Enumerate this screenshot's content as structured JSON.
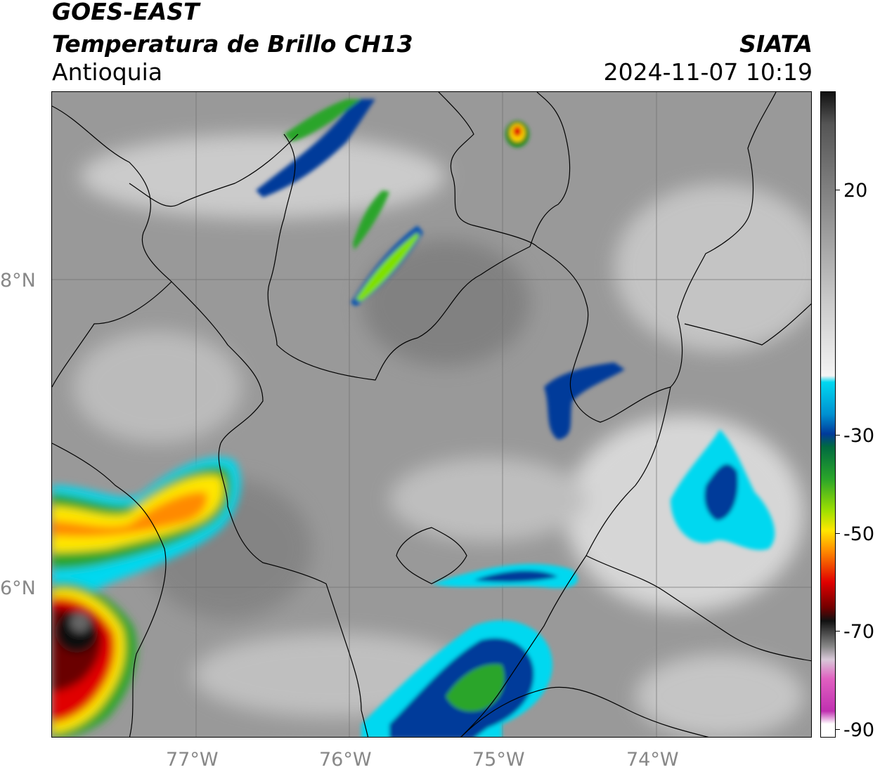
{
  "header": {
    "satellite": "GOES-EAST",
    "product": "Temperatura de Brillo CH13",
    "region": "Antioquia",
    "agency": "SIATA",
    "datetime": "2024-11-07 10:19"
  },
  "axes": {
    "longitude_labels": [
      "77°W",
      "76°W",
      "75°W",
      "74°W"
    ],
    "latitude_labels": [
      "8°N",
      "6°N"
    ]
  },
  "colorbar": {
    "ticks": [
      "20",
      "-30",
      "-50",
      "-70",
      "-90"
    ],
    "range": [
      -90,
      40
    ],
    "colors": {
      "warm_gray": "#8c8c8c",
      "white": "#f4f4f4",
      "cyan": "#00d8f0",
      "blue": "#003a9a",
      "green": "#2aa52a",
      "yellow": "#ffe600",
      "red": "#e00000",
      "black": "#111111",
      "magenta": "#c030b0"
    }
  }
}
